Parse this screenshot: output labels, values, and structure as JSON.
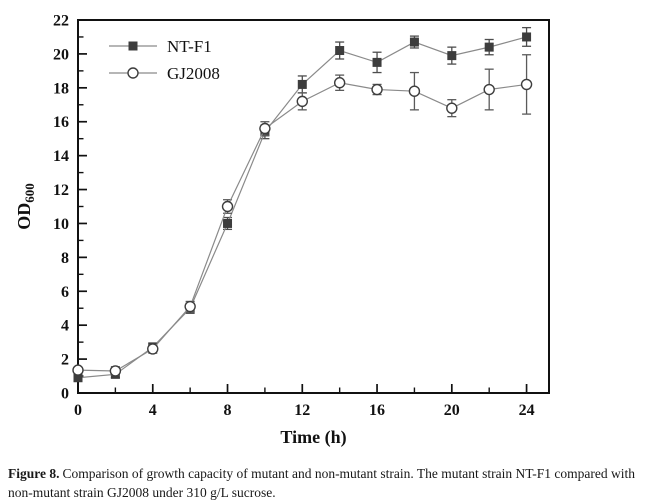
{
  "figure": {
    "caption_label": "Figure 8.",
    "caption_text": "Comparison of growth capacity of mutant and non-mutant strain. The mutant strain NT-F1 compared with non-mutant strain GJ2008 under 310 g/L sucrose."
  },
  "chart_data": {
    "type": "line",
    "title": "",
    "xlabel": "Time (h)",
    "ylabel": "OD",
    "ylabel_subscript": "600",
    "xlim": [
      0,
      25.2
    ],
    "ylim": [
      0,
      22
    ],
    "x_major_ticks": [
      0,
      4,
      8,
      12,
      16,
      20,
      24
    ],
    "x_minor_ticks": [
      2,
      6,
      10,
      14,
      18,
      22
    ],
    "y_major_ticks": [
      0,
      2,
      4,
      6,
      8,
      10,
      12,
      14,
      16,
      18,
      20,
      22
    ],
    "y_minor_ticks": [
      1,
      3,
      5,
      7,
      9,
      11,
      13,
      15,
      17,
      19,
      21
    ],
    "grid": false,
    "legend_position": "top-left-inside",
    "x": [
      0,
      2,
      4,
      6,
      8,
      10,
      12,
      14,
      16,
      18,
      20,
      22,
      24
    ],
    "series": [
      {
        "name": "NT-F1",
        "marker": "filled-square",
        "color": "#3d3d3d",
        "line_color": "#8a8a8a",
        "error_color": "#4d4d4d",
        "values": [
          0.9,
          1.1,
          2.7,
          5.0,
          10.0,
          15.4,
          18.2,
          20.2,
          19.5,
          20.7,
          19.9,
          20.4,
          21.0
        ],
        "errors": [
          0.15,
          0.2,
          0.25,
          0.3,
          0.35,
          0.4,
          0.5,
          0.5,
          0.6,
          0.35,
          0.5,
          0.45,
          0.55
        ]
      },
      {
        "name": "GJ2008",
        "marker": "open-circle",
        "color": "#3d3d3d",
        "line_color": "#8a8a8a",
        "error_color": "#5a5a5a",
        "values": [
          1.35,
          1.3,
          2.6,
          5.1,
          11.0,
          15.6,
          17.2,
          18.3,
          17.9,
          17.8,
          16.8,
          17.9,
          18.2
        ],
        "errors": [
          0.15,
          0.25,
          0.25,
          0.3,
          0.4,
          0.4,
          0.5,
          0.45,
          0.3,
          1.1,
          0.5,
          1.2,
          1.75
        ]
      }
    ]
  }
}
